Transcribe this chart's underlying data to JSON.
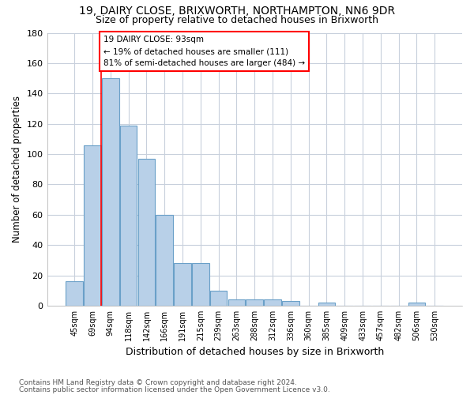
{
  "title1": "19, DAIRY CLOSE, BRIXWORTH, NORTHAMPTON, NN6 9DR",
  "title2": "Size of property relative to detached houses in Brixworth",
  "xlabel": "Distribution of detached houses by size in Brixworth",
  "ylabel": "Number of detached properties",
  "categories": [
    "45sqm",
    "69sqm",
    "94sqm",
    "118sqm",
    "142sqm",
    "166sqm",
    "191sqm",
    "215sqm",
    "239sqm",
    "263sqm",
    "288sqm",
    "312sqm",
    "336sqm",
    "360sqm",
    "385sqm",
    "409sqm",
    "433sqm",
    "457sqm",
    "482sqm",
    "506sqm",
    "530sqm"
  ],
  "bar_values": [
    16,
    106,
    150,
    119,
    97,
    60,
    28,
    28,
    10,
    4,
    4,
    4,
    3,
    0,
    2,
    0,
    0,
    0,
    0,
    2,
    0
  ],
  "bar_color": "#b8d0e8",
  "bar_edge_color": "#6aa0c8",
  "annotation_line1": "19 DAIRY CLOSE: 93sqm",
  "annotation_line2": "← 19% of detached houses are smaller (111)",
  "annotation_line3": "81% of semi-detached houses are larger (484) →",
  "ylim": [
    0,
    180
  ],
  "yticks": [
    0,
    20,
    40,
    60,
    80,
    100,
    120,
    140,
    160,
    180
  ],
  "footer1": "Contains HM Land Registry data © Crown copyright and database right 2024.",
  "footer2": "Contains public sector information licensed under the Open Government Licence v3.0.",
  "bg_color": "#ffffff",
  "grid_color": "#c8d0dc"
}
